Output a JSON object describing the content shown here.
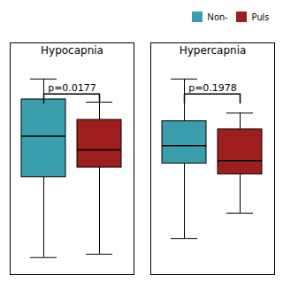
{
  "chart_data": {
    "type": "box",
    "categories": [
      "Hypocapnia",
      "Hypercapnia"
    ],
    "series": [
      {
        "name": "Non-",
        "color": "#3a9eac",
        "values": [
          {
            "whislo": -1.6,
            "q1": -0.42,
            "med": 0.18,
            "q3": 0.72,
            "whishi": 1.02
          },
          {
            "whislo": -1.32,
            "q1": -0.22,
            "med": 0.04,
            "q3": 0.4,
            "whishi": 1.02
          }
        ]
      },
      {
        "name": "Puls",
        "color": "#9e1e1e",
        "values": [
          {
            "whislo": -1.55,
            "q1": -0.28,
            "med": -0.02,
            "q3": 0.42,
            "whishi": 0.68
          },
          {
            "whislo": -0.95,
            "q1": -0.38,
            "med": -0.18,
            "q3": 0.28,
            "whishi": 0.52
          }
        ]
      }
    ],
    "p_values": [
      "p=0.0177",
      "p=0.1978"
    ],
    "ylim": [
      -1.85,
      1.55
    ],
    "tick_labels": false,
    "legend": "upper right"
  }
}
